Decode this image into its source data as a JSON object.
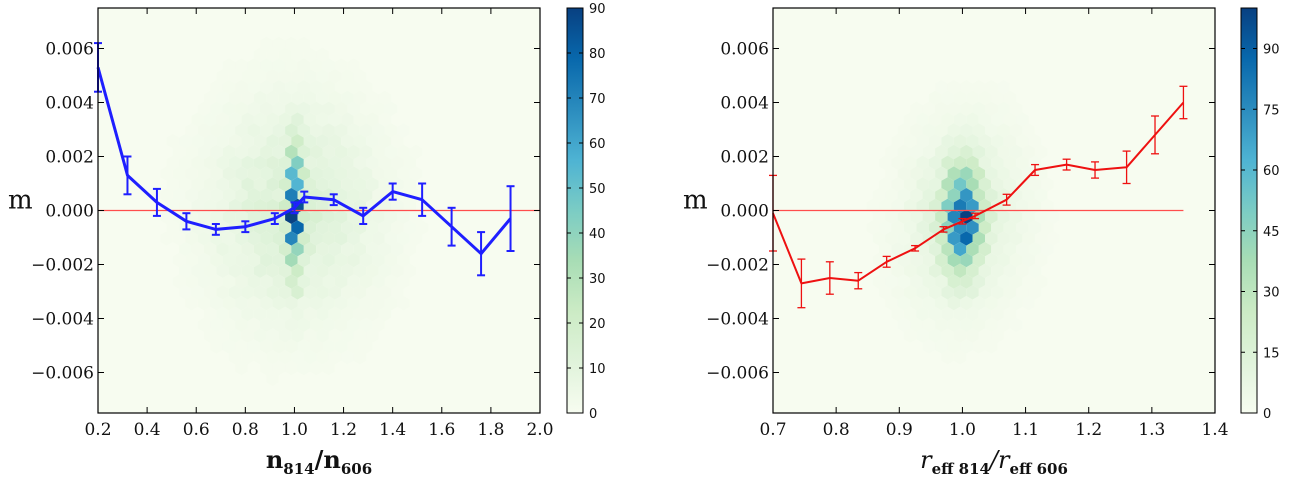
{
  "chart_data": [
    {
      "type": "scatter",
      "subtype": "hexbin-density-with-binned-mean-line",
      "ylabel": "m",
      "xlabel": {
        "base1": "n",
        "sub1": "814",
        "sep": "/",
        "base2": "n",
        "sub2": "606",
        "italic": false
      },
      "xlim": [
        0.2,
        2.0
      ],
      "ylim": [
        -0.0075,
        0.0075
      ],
      "xticks": [
        0.2,
        0.4,
        0.6,
        0.8,
        1.0,
        1.2,
        1.4,
        1.6,
        1.8,
        2.0
      ],
      "xtick_labels": [
        "0.2",
        "0.4",
        "0.6",
        "0.8",
        "1.0",
        "1.2",
        "1.4",
        "1.6",
        "1.8",
        "2.0"
      ],
      "yticks": [
        0.006,
        0.004,
        0.002,
        0.0,
        -0.002,
        -0.004,
        -0.006
      ],
      "ytick_labels": [
        "0.006",
        "0.004",
        "0.002",
        "0.000",
        "−0.002",
        "−0.004",
        "−0.006"
      ],
      "reference_line": {
        "y": 0.0,
        "x_range": [
          0.2,
          2.0
        ],
        "color": "#ff4d4d"
      },
      "density": {
        "center_x": 1.0,
        "center_y": 0.0,
        "sigma_x": 0.22,
        "sigma_y": 0.0026,
        "spike_sigma_x": 0.018,
        "spike_sigma_y": 0.0014,
        "max": 90
      },
      "series": [
        {
          "color": "#1f1fff",
          "line_width": 3,
          "x": [
            0.2,
            0.32,
            0.44,
            0.56,
            0.68,
            0.8,
            0.92,
            1.0,
            1.04,
            1.16,
            1.28,
            1.4,
            1.52,
            1.64,
            1.76,
            1.88
          ],
          "y": [
            0.0053,
            0.0013,
            0.0003,
            -0.0004,
            -0.0007,
            -0.0006,
            -0.0003,
            0.0001,
            0.0005,
            0.0004,
            -0.0002,
            0.0007,
            0.0004,
            -0.0006,
            -0.0016,
            -0.0003
          ],
          "yerr": [
            0.0009,
            0.0007,
            0.0005,
            0.0003,
            0.0002,
            0.0002,
            0.0002,
            0.0002,
            0.0002,
            0.0002,
            0.0003,
            0.0003,
            0.0006,
            0.0007,
            0.0008,
            0.0012
          ]
        }
      ],
      "colorbar": {
        "min": 0,
        "max": 90,
        "ticks": [
          0,
          10,
          20,
          30,
          40,
          50,
          60,
          70,
          80,
          90
        ],
        "tick_labels": [
          "0",
          "10",
          "20",
          "30",
          "40",
          "50",
          "60",
          "70",
          "80",
          "90"
        ],
        "colormap": [
          "#f7fcf0",
          "#e0f3db",
          "#ccebc5",
          "#a8ddb5",
          "#7bccc4",
          "#4eb3d3",
          "#2b8cbe",
          "#0868ac",
          "#084081"
        ]
      }
    },
    {
      "type": "scatter",
      "subtype": "hexbin-density-with-binned-mean-line",
      "ylabel": "m",
      "xlabel": {
        "base1": "r",
        "sub1": "eff 814",
        "sep": "/",
        "base2": "r",
        "sub2": "eff 606",
        "italic": true
      },
      "xlim": [
        0.7,
        1.4
      ],
      "ylim": [
        -0.0075,
        0.0075
      ],
      "xticks": [
        0.7,
        0.8,
        0.9,
        1.0,
        1.1,
        1.2,
        1.3,
        1.4
      ],
      "xtick_labels": [
        "0.7",
        "0.8",
        "0.9",
        "1.0",
        "1.1",
        "1.2",
        "1.3",
        "1.4"
      ],
      "yticks": [
        0.006,
        0.004,
        0.002,
        0.0,
        -0.002,
        -0.004,
        -0.006
      ],
      "ytick_labels": [
        "0.006",
        "0.004",
        "0.002",
        "0.000",
        "−0.002",
        "−0.004",
        "−0.006"
      ],
      "reference_line": {
        "y": 0.0,
        "x_range": [
          0.7,
          1.35
        ],
        "color": "#ff4d4d"
      },
      "density": {
        "center_x": 1.0,
        "center_y": -0.0003,
        "sigma_x": 0.06,
        "sigma_y": 0.0022,
        "spike_sigma_x": 0.018,
        "spike_sigma_y": 0.0012,
        "max": 100,
        "tilt": 0.012
      },
      "series": [
        {
          "color": "#ee1111",
          "line_width": 2,
          "x": [
            0.7,
            0.745,
            0.79,
            0.835,
            0.88,
            0.925,
            0.97,
            1.0,
            1.02,
            1.07,
            1.115,
            1.165,
            1.21,
            1.26,
            1.305,
            1.35
          ],
          "y": [
            -0.0001,
            -0.0027,
            -0.0025,
            -0.0026,
            -0.0019,
            -0.0014,
            -0.0007,
            -0.0004,
            -0.0002,
            0.0004,
            0.0015,
            0.0017,
            0.0015,
            0.0016,
            0.0028,
            0.004
          ],
          "yerr": [
            0.0014,
            0.0009,
            0.0006,
            0.0003,
            0.0002,
            0.0001,
            0.0001,
            0.0001,
            0.0001,
            0.0002,
            0.0002,
            0.0002,
            0.0003,
            0.0006,
            0.0007,
            0.0006
          ]
        }
      ],
      "colorbar": {
        "min": 0,
        "max": 100,
        "ticks": [
          0,
          15,
          30,
          45,
          60,
          75,
          90
        ],
        "tick_labels": [
          "0",
          "15",
          "30",
          "45",
          "60",
          "75",
          "90"
        ],
        "colormap": [
          "#f7fcf0",
          "#e0f3db",
          "#ccebc5",
          "#a8ddb5",
          "#7bccc4",
          "#4eb3d3",
          "#2b8cbe",
          "#0868ac",
          "#084081"
        ]
      }
    }
  ]
}
